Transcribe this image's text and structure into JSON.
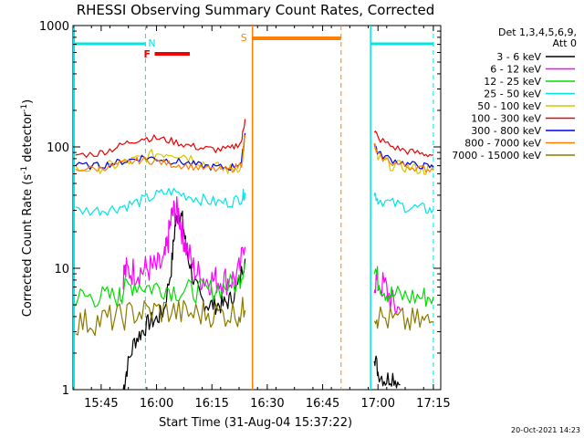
{
  "chart_data": {
    "type": "line",
    "title": "RHESSI Observing Summary Count Rates, Corrected",
    "xlabel": "Start Time (31-Aug-04 15:37:22)",
    "ylabel_main": "Corrected Count Rate (s",
    "ylabel_sup1": "-1",
    "ylabel_mid": " detector",
    "ylabel_sup2": "-1",
    "ylabel_end": ")",
    "yscale": "log",
    "xlim": [
      "15:37:22",
      "17:17:00"
    ],
    "ylim": [
      1,
      1000
    ],
    "x_ticks": [
      "15:45",
      "16:00",
      "16:15",
      "16:30",
      "16:45",
      "17:00",
      "17:15"
    ],
    "y_ticks": [
      "1",
      "10",
      "100",
      "1000"
    ],
    "timestamp": "20-Oct-2021 14:23",
    "legend": {
      "header1": "Det 1,3,4,5,6,9,",
      "header2": "Att 0",
      "entries": [
        {
          "label": "3 - 6 keV",
          "color": "#000000"
        },
        {
          "label": "6 - 12 keV",
          "color": "#ff00ff"
        },
        {
          "label": "12 - 25 keV",
          "color": "#00dd00"
        },
        {
          "label": "25 - 50 keV",
          "color": "#00e5e5"
        },
        {
          "label": "50 - 100 keV",
          "color": "#d4c800"
        },
        {
          "label": "100 - 300 keV",
          "color": "#ee0000"
        },
        {
          "label": "300 - 800 keV",
          "color": "#0000ee"
        },
        {
          "label": "800 - 7000 keV",
          "color": "#ff8000"
        },
        {
          "label": "7000 - 15000 keV",
          "color": "#8a7a00"
        }
      ]
    },
    "annotations": [
      {
        "text": "N",
        "color": "#00e5e5"
      },
      {
        "text": "F",
        "color": "#ee0000"
      },
      {
        "text": "S",
        "color": "#ff8000"
      }
    ],
    "night_periods": [
      [
        "15:37:22",
        "15:57:00"
      ],
      [
        "16:58:00",
        "17:15:00"
      ]
    ],
    "flare_bar": [
      "15:59:00",
      "16:09:00"
    ],
    "saa_period": [
      "16:26:00",
      "16:50:00"
    ],
    "data_gap": [
      "16:25:00",
      "16:58:00"
    ],
    "series": [
      {
        "name": "3 - 6 keV",
        "color": "#000000",
        "segments": [
          {
            "x": [
              "15:51",
              "15:52",
              "15:54",
              "15:56",
              "15:58",
              "16:00",
              "16:02",
              "16:04",
              "16:05",
              "16:06",
              "16:07",
              "16:08",
              "16:10",
              "16:12",
              "16:14",
              "16:16",
              "16:18",
              "16:20",
              "16:22",
              "16:24"
            ],
            "y": [
              1,
              1.5,
              2.5,
              3,
              3.6,
              3.8,
              4.5,
              10,
              22,
              30,
              25,
              15,
              8,
              5.5,
              5,
              5,
              5,
              5.5,
              7,
              12
            ]
          },
          {
            "x": [
              "16:59",
              "17:00",
              "17:02",
              "17:04",
              "17:06"
            ],
            "y": [
              2,
              1.4,
              1.2,
              1.3,
              1.1
            ]
          }
        ]
      },
      {
        "name": "6 - 12 keV",
        "color": "#ff00ff",
        "segments": [
          {
            "x": [
              "15:51",
              "15:52",
              "15:54",
              "15:56",
              "15:58",
              "16:00",
              "16:02",
              "16:03",
              "16:04",
              "16:05",
              "16:06",
              "16:07",
              "16:08",
              "16:10",
              "16:12",
              "16:14",
              "16:16",
              "16:18",
              "16:20",
              "16:22",
              "16:24"
            ],
            "y": [
              9,
              9.5,
              9.5,
              9.5,
              10,
              10,
              11,
              16,
              26,
              30,
              28,
              20,
              15,
              10,
              8.5,
              8,
              8,
              8,
              8,
              8.5,
              15
            ]
          },
          {
            "x": [
              "16:59",
              "17:00",
              "17:02",
              "17:04",
              "17:06"
            ],
            "y": [
              8,
              7.5,
              7,
              5,
              4.5
            ]
          }
        ]
      },
      {
        "name": "12 - 25 keV",
        "color": "#00dd00",
        "segments": [
          {
            "x": [
              "15:38",
              "15:42",
              "15:46",
              "15:50",
              "15:51",
              "15:54",
              "15:58",
              "16:02",
              "16:06",
              "16:10",
              "16:14",
              "16:18",
              "16:22",
              "16:24"
            ],
            "y": [
              5.8,
              5.8,
              5.8,
              5.8,
              6.5,
              7.5,
              7,
              7,
              6.5,
              6.5,
              6.5,
              7,
              7.5,
              11
            ]
          },
          {
            "x": [
              "16:59",
              "17:00",
              "17:02",
              "17:04",
              "17:08",
              "17:12",
              "17:15"
            ],
            "y": [
              11,
              8,
              6.5,
              6,
              5.8,
              5.8,
              5.8
            ]
          }
        ]
      },
      {
        "name": "25 - 50 keV",
        "color": "#00e5e5",
        "segments": [
          {
            "x": [
              "15:38",
              "15:44",
              "15:48",
              "15:52",
              "15:56",
              "16:00",
              "16:04",
              "16:08",
              "16:12",
              "16:16",
              "16:20",
              "16:23",
              "16:24"
            ],
            "y": [
              30,
              30,
              31,
              33,
              36,
              40,
              43,
              40,
              37,
              35,
              35,
              38,
              42
            ]
          },
          {
            "x": [
              "16:59",
              "17:00",
              "17:04",
              "17:08",
              "17:12",
              "17:15"
            ],
            "y": [
              42,
              37,
              34,
              32,
              31,
              30
            ]
          }
        ]
      },
      {
        "name": "50 - 100 keV",
        "color": "#d4c800",
        "segments": [
          {
            "x": [
              "15:38",
              "15:44",
              "15:48",
              "15:52",
              "15:56",
              "16:00",
              "16:04",
              "16:08",
              "16:12",
              "16:16",
              "16:20",
              "16:23",
              "16:24"
            ],
            "y": [
              66,
              67,
              70,
              75,
              80,
              88,
              90,
              85,
              75,
              68,
              65,
              70,
              110
            ]
          },
          {
            "x": [
              "16:59",
              "17:00",
              "17:04",
              "17:08",
              "17:12",
              "17:15"
            ],
            "y": [
              100,
              80,
              70,
              68,
              65,
              64
            ]
          }
        ]
      },
      {
        "name": "100 - 300 keV",
        "color": "#ee0000",
        "segments": [
          {
            "x": [
              "15:38",
              "15:44",
              "15:48",
              "15:52",
              "15:56",
              "16:00",
              "16:04",
              "16:08",
              "16:12",
              "16:16",
              "16:20",
              "16:23",
              "16:24"
            ],
            "y": [
              86,
              88,
              96,
              108,
              118,
              118,
              112,
              104,
              98,
              95,
              96,
              110,
              170
            ]
          },
          {
            "x": [
              "16:59",
              "17:00",
              "17:04",
              "17:08",
              "17:12",
              "17:15"
            ],
            "y": [
              140,
              118,
              100,
              92,
              88,
              86
            ]
          }
        ]
      },
      {
        "name": "300 - 800 keV",
        "color": "#0000ee",
        "segments": [
          {
            "x": [
              "15:38",
              "15:44",
              "15:48",
              "15:52",
              "15:56",
              "16:00",
              "16:04",
              "16:08",
              "16:12",
              "16:16",
              "16:20",
              "16:23",
              "16:24"
            ],
            "y": [
              70,
              70,
              73,
              77,
              82,
              80,
              77,
              74,
              70,
              68,
              68,
              75,
              130
            ]
          },
          {
            "x": [
              "16:59",
              "17:00",
              "17:04",
              "17:08",
              "17:12",
              "17:15"
            ],
            "y": [
              110,
              88,
              78,
              72,
              70,
              68
            ]
          }
        ]
      },
      {
        "name": "800 - 7000 keV",
        "color": "#ff8000",
        "segments": [
          {
            "x": [
              "15:38",
              "15:44",
              "15:48",
              "15:52",
              "15:56",
              "16:00",
              "16:04",
              "16:08",
              "16:12",
              "16:16",
              "16:20",
              "16:23",
              "16:24"
            ],
            "y": [
              66,
              66,
              70,
              74,
              78,
              76,
              72,
              70,
              67,
              65,
              65,
              72,
              125
            ]
          },
          {
            "x": [
              "16:59",
              "17:00",
              "17:04",
              "17:08",
              "17:12",
              "17:15"
            ],
            "y": [
              105,
              84,
              74,
              69,
              66,
              65
            ]
          }
        ]
      },
      {
        "name": "7000 - 15000 keV",
        "color": "#8a7a00",
        "segments": [
          {
            "x": [
              "15:38",
              "15:42",
              "15:46",
              "15:50",
              "15:54",
              "15:58",
              "16:02",
              "16:06",
              "16:10",
              "16:14",
              "16:18",
              "16:22",
              "16:24"
            ],
            "y": [
              3.6,
              3.6,
              3.8,
              3.9,
              4.3,
              4.4,
              4.5,
              4.3,
              4.2,
              4.3,
              4.2,
              4.3,
              4.5
            ]
          },
          {
            "x": [
              "16:59",
              "17:00",
              "17:04",
              "17:08",
              "17:12",
              "17:15"
            ],
            "y": [
              4.5,
              4,
              3.7,
              3.6,
              3.6,
              3.6
            ]
          }
        ]
      }
    ]
  }
}
